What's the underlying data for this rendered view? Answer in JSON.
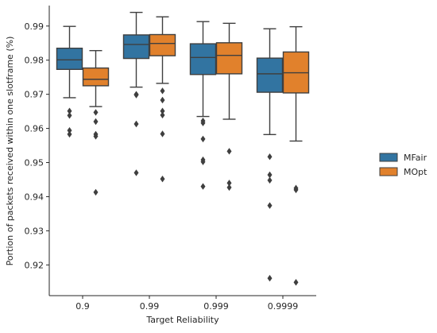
{
  "chart_data": {
    "type": "box",
    "xlabel": "Target Reliability",
    "ylabel": "Portion of packets received within one slotframe (%)",
    "categories": [
      "0.9",
      "0.99",
      "0.999",
      "0.9999"
    ],
    "ylim": [
      0.911,
      0.996
    ],
    "yticks": [
      "0.92",
      "0.93",
      "0.94",
      "0.95",
      "0.96",
      "0.97",
      "0.98",
      "0.99"
    ],
    "grid": false,
    "legend_position": "right",
    "series": [
      {
        "name": "MFair",
        "color": "#3274a1",
        "boxes": [
          {
            "whislo": 0.969,
            "q1": 0.9773,
            "med": 0.9801,
            "q3": 0.9835,
            "whishi": 0.9899,
            "fliers": [
              0.9651,
              0.9638,
              0.9594,
              0.9583
            ]
          },
          {
            "whislo": 0.9721,
            "q1": 0.9805,
            "med": 0.9846,
            "q3": 0.9874,
            "whishi": 0.994,
            "fliers": [
              0.97,
              0.9698,
              0.9613,
              0.947
            ]
          },
          {
            "whislo": 0.9635,
            "q1": 0.9758,
            "med": 0.9808,
            "q3": 0.9848,
            "whishi": 0.9913,
            "fliers": [
              0.9622,
              0.9616,
              0.9569,
              0.9508,
              0.9502,
              0.943
            ]
          },
          {
            "whislo": 0.9582,
            "q1": 0.9706,
            "med": 0.976,
            "q3": 0.9806,
            "whishi": 0.9892,
            "fliers": [
              0.9517,
              0.9464,
              0.9448,
              0.9374,
              0.9161
            ]
          }
        ]
      },
      {
        "name": "MOpt",
        "color": "#e1812c",
        "boxes": [
          {
            "whislo": 0.9664,
            "q1": 0.9725,
            "med": 0.9744,
            "q3": 0.9777,
            "whishi": 0.9828,
            "fliers": [
              0.9647,
              0.962,
              0.9583,
              0.9577,
              0.9413
            ]
          },
          {
            "whislo": 0.9732,
            "q1": 0.9813,
            "med": 0.9849,
            "q3": 0.9875,
            "whishi": 0.9927,
            "fliers": [
              0.971,
              0.9683,
              0.9651,
              0.9639,
              0.9584,
              0.9452
            ]
          },
          {
            "whislo": 0.9627,
            "q1": 0.976,
            "med": 0.9814,
            "q3": 0.9851,
            "whishi": 0.9908,
            "fliers": [
              0.9533,
              0.944,
              0.9427
            ]
          },
          {
            "whislo": 0.9563,
            "q1": 0.9704,
            "med": 0.9763,
            "q3": 0.9824,
            "whishi": 0.9898,
            "fliers": [
              0.9425,
              0.942,
              0.9149
            ]
          }
        ]
      }
    ]
  }
}
